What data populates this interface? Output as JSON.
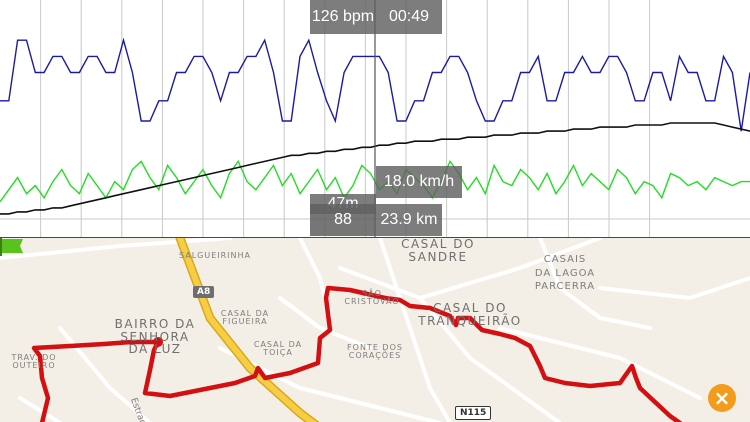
{
  "chart": {
    "heart_rate_label": "126 bpm",
    "time_label": "00:49",
    "speed_label": "18.0 km/h",
    "elevation_label": "47m",
    "cadence_label": "88",
    "distance_label": "23.9 km",
    "series_colors": {
      "heart_rate": "#22dd22",
      "speed": "#1a1aa8",
      "elevation": "#111111",
      "cursor": "#555555",
      "grid": "#c8c8c8"
    }
  },
  "chart_data": {
    "type": "line",
    "cursor_time": "00:49",
    "series": [
      {
        "values": [
          10,
          16,
          22,
          14,
          18,
          12,
          20,
          26,
          18,
          14,
          24,
          18,
          12,
          20,
          16,
          26,
          30,
          22,
          16,
          28,
          22,
          14,
          20,
          26,
          18,
          12,
          24,
          30,
          20,
          16,
          22,
          28,
          18,
          24,
          14,
          20,
          26,
          16,
          22,
          12,
          18,
          28,
          24,
          16,
          20,
          14,
          26,
          22,
          18,
          12,
          20,
          30,
          24,
          16,
          22,
          14,
          28,
          20,
          18,
          26,
          22,
          16,
          24,
          14,
          20,
          28,
          18,
          24,
          20,
          16,
          26,
          22,
          14,
          20,
          18,
          12,
          24,
          22,
          18,
          20,
          16,
          22,
          20,
          18,
          20,
          20
        ]
      },
      {
        "values": [
          60,
          60,
          90,
          90,
          74,
          74,
          82,
          82,
          74,
          74,
          82,
          82,
          74,
          74,
          90,
          74,
          50,
          50,
          60,
          60,
          74,
          74,
          82,
          82,
          74,
          60,
          74,
          74,
          82,
          82,
          90,
          74,
          50,
          50,
          82,
          90,
          74,
          60,
          50,
          74,
          82,
          82,
          82,
          82,
          74,
          50,
          50,
          60,
          60,
          74,
          74,
          82,
          82,
          74,
          60,
          50,
          50,
          60,
          60,
          74,
          74,
          82,
          60,
          60,
          74,
          74,
          82,
          74,
          74,
          82,
          82,
          74,
          60,
          60,
          74,
          74,
          60,
          82,
          74,
          74,
          60,
          60,
          82,
          74,
          45,
          74
        ]
      },
      {
        "values": [
          4,
          4,
          5,
          5,
          6,
          6,
          7,
          7,
          8,
          9,
          10,
          11,
          12,
          13,
          14,
          15,
          16,
          17,
          18,
          19,
          20,
          21,
          22,
          23,
          24,
          25,
          26,
          27,
          28,
          29,
          30,
          31,
          32,
          33,
          33,
          34,
          34,
          35,
          35,
          36,
          36,
          37,
          37,
          38,
          38,
          39,
          39,
          40,
          40,
          40,
          41,
          41,
          41,
          42,
          42,
          42,
          43,
          43,
          43,
          44,
          44,
          44,
          45,
          45,
          45,
          46,
          46,
          46,
          47,
          47,
          47,
          47,
          48,
          48,
          48,
          48,
          49,
          49,
          49,
          49,
          49,
          49,
          48,
          47,
          46,
          45
        ]
      }
    ]
  },
  "map": {
    "labels": {
      "salgueirinha": "SALGUEIRINHA",
      "casal_do_sandre_1": "CASAL DO",
      "casal_do_sandre_2": "SANDRE",
      "casais_1": "CASAIS",
      "casais_2": "DA LAGOA",
      "casais_3": "PARCERRA",
      "sao_cristovao_1": "SÃO",
      "sao_cristovao_2": "CRISTOVÃO",
      "casal_tranqueirao_1": "CASAL DO",
      "casal_tranqueirao_2": "TRANQUEIRÃO",
      "bairro_1": "BAIRRO DA",
      "bairro_2": "SENHORA",
      "bairro_3": "DA LUZ",
      "casal_figueira_1": "CASAL DA",
      "casal_figueira_2": "FIGUEIRA",
      "casal_toica_1": "CASAL DA",
      "casal_toica_2": "TOIÇA",
      "fonte_1": "FONTE DOS",
      "fonte_2": "CORAÇÕES",
      "trav_1": "TRAV. DO",
      "trav_2": "OUTEIRO",
      "estrada": "Estrada"
    },
    "road_shields": {
      "a8": "A8",
      "n115": "N115"
    },
    "close_glyph": "×",
    "colors": {
      "route": "#d40f12",
      "motorway": "#f1c232",
      "flag": "#5ac21e",
      "land": "#f3efe6",
      "close": "#f29b1d"
    }
  }
}
